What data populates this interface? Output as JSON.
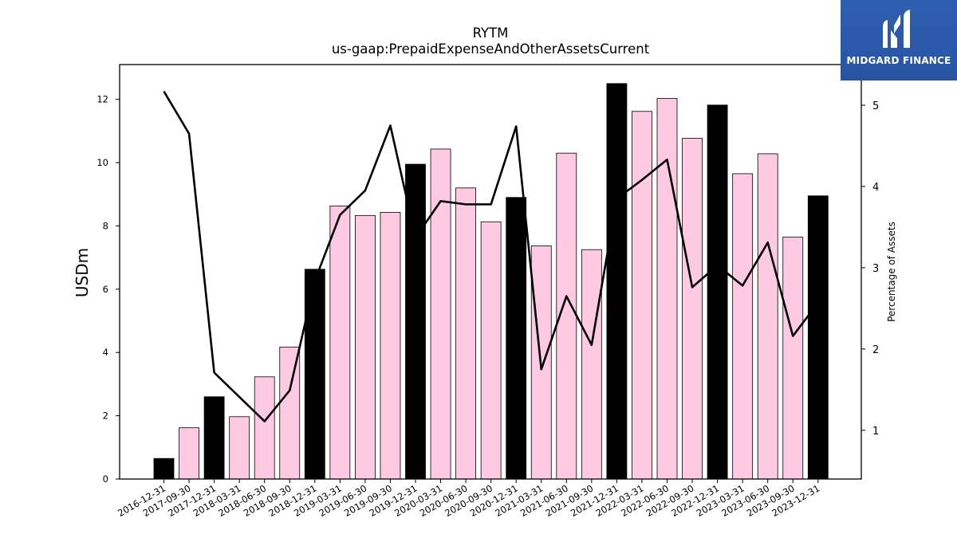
{
  "header": {
    "title": "RYTM",
    "subtitle": "us-gaap:PrepaidExpenseAndOtherAssetsCurrent"
  },
  "logo": {
    "text": "MIDGARD FINANCE",
    "icon": "midgard-logo-icon",
    "color": "#2f5fb0"
  },
  "colors": {
    "bar_highlight": "#000000",
    "bar_normal": "#fdc9e3",
    "line": "#000000"
  },
  "chart_data": {
    "type": "bar",
    "title": "RYTM",
    "subtitle": "us-gaap:PrepaidExpenseAndOtherAssetsCurrent",
    "ylabel": "USDm",
    "y2label": "Percentage of Assets",
    "ylim": [
      0,
      13.1
    ],
    "y2lim": [
      0.4,
      5.5
    ],
    "yticks": [
      0,
      2,
      4,
      6,
      8,
      10,
      12
    ],
    "y2ticks": [
      1,
      2,
      3,
      4,
      5
    ],
    "grid": false,
    "categories": [
      "2016-12-31",
      "2017-09-30",
      "2017-12-31",
      "2018-03-31",
      "2018-06-30",
      "2018-09-30",
      "2018-12-31",
      "2019-03-31",
      "2019-06-30",
      "2019-09-30",
      "2019-12-31",
      "2020-03-31",
      "2020-06-30",
      "2020-09-30",
      "2020-12-31",
      "2021-03-31",
      "2021-06-30",
      "2021-09-30",
      "2021-12-31",
      "2022-03-31",
      "2022-06-30",
      "2022-09-30",
      "2022-12-31",
      "2023-03-31",
      "2023-06-30",
      "2023-09-30",
      "2023-12-31"
    ],
    "series": [
      {
        "type": "bar",
        "axis": "left",
        "values": [
          0.65,
          1.62,
          2.6,
          1.97,
          3.23,
          4.17,
          6.63,
          8.63,
          8.33,
          8.43,
          9.95,
          10.43,
          9.2,
          8.13,
          8.9,
          7.37,
          10.3,
          7.25,
          12.5,
          11.62,
          12.03,
          10.77,
          11.82,
          9.65,
          10.28,
          7.65,
          8.95
        ],
        "highlight": [
          true,
          false,
          true,
          false,
          false,
          false,
          true,
          false,
          false,
          false,
          true,
          false,
          false,
          false,
          true,
          false,
          false,
          false,
          true,
          false,
          false,
          false,
          true,
          false,
          false,
          false,
          true
        ]
      },
      {
        "type": "line",
        "axis": "right",
        "values": [
          5.17,
          4.65,
          1.71,
          1.41,
          1.11,
          1.49,
          2.84,
          3.65,
          3.95,
          4.75,
          3.37,
          3.82,
          3.78,
          3.78,
          4.74,
          1.75,
          2.65,
          2.05,
          3.85,
          4.08,
          4.33,
          2.76,
          3.03,
          2.78,
          3.31,
          2.16,
          2.57
        ]
      }
    ]
  }
}
